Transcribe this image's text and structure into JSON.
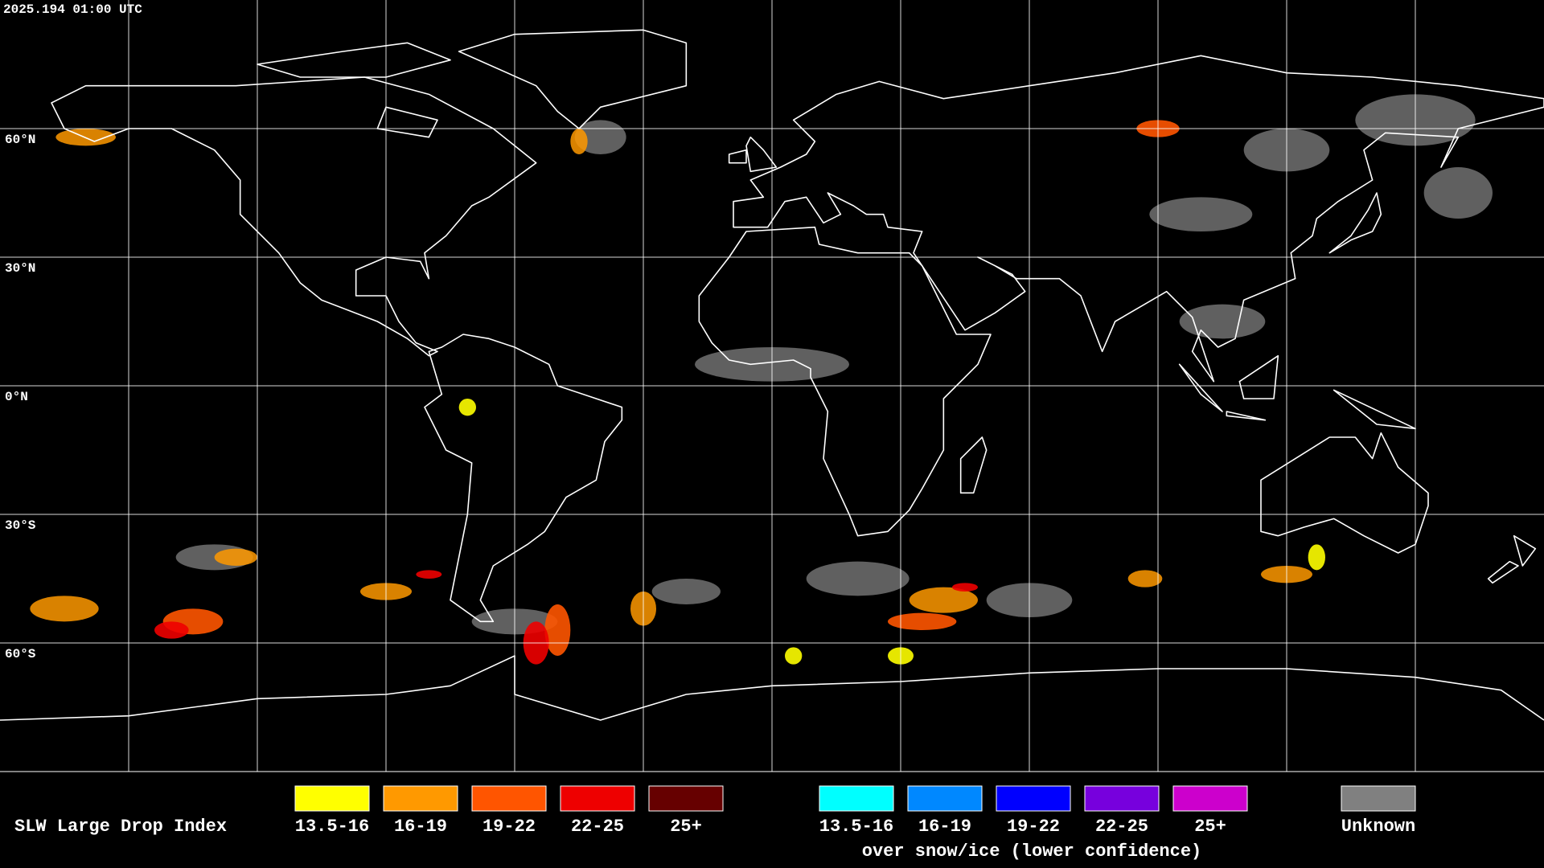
{
  "timestamp": "2025.194 01:00 UTC",
  "latitude_labels": [
    "60°N",
    "30°N",
    "0°N",
    "30°S",
    "60°S"
  ],
  "legend": {
    "title": "SLW Large Drop Index",
    "items": [
      {
        "label": "13.5-16",
        "color": "#ffff00"
      },
      {
        "label": "16-19",
        "color": "#ff9900"
      },
      {
        "label": "19-22",
        "color": "#ff5500"
      },
      {
        "label": "22-25",
        "color": "#ee0000"
      },
      {
        "label": "25+",
        "color": "#660000"
      }
    ],
    "snow_ice_items": [
      {
        "label": "13.5-16",
        "color": "#00ffff"
      },
      {
        "label": "16-19",
        "color": "#0088ff"
      },
      {
        "label": "19-22",
        "color": "#0000ff"
      },
      {
        "label": "22-25",
        "color": "#7700dd"
      },
      {
        "label": "25+",
        "color": "#cc00cc"
      }
    ],
    "snow_ice_note": "over snow/ice (lower confidence)",
    "unknown": {
      "label": "Unknown",
      "color": "#808080"
    }
  }
}
